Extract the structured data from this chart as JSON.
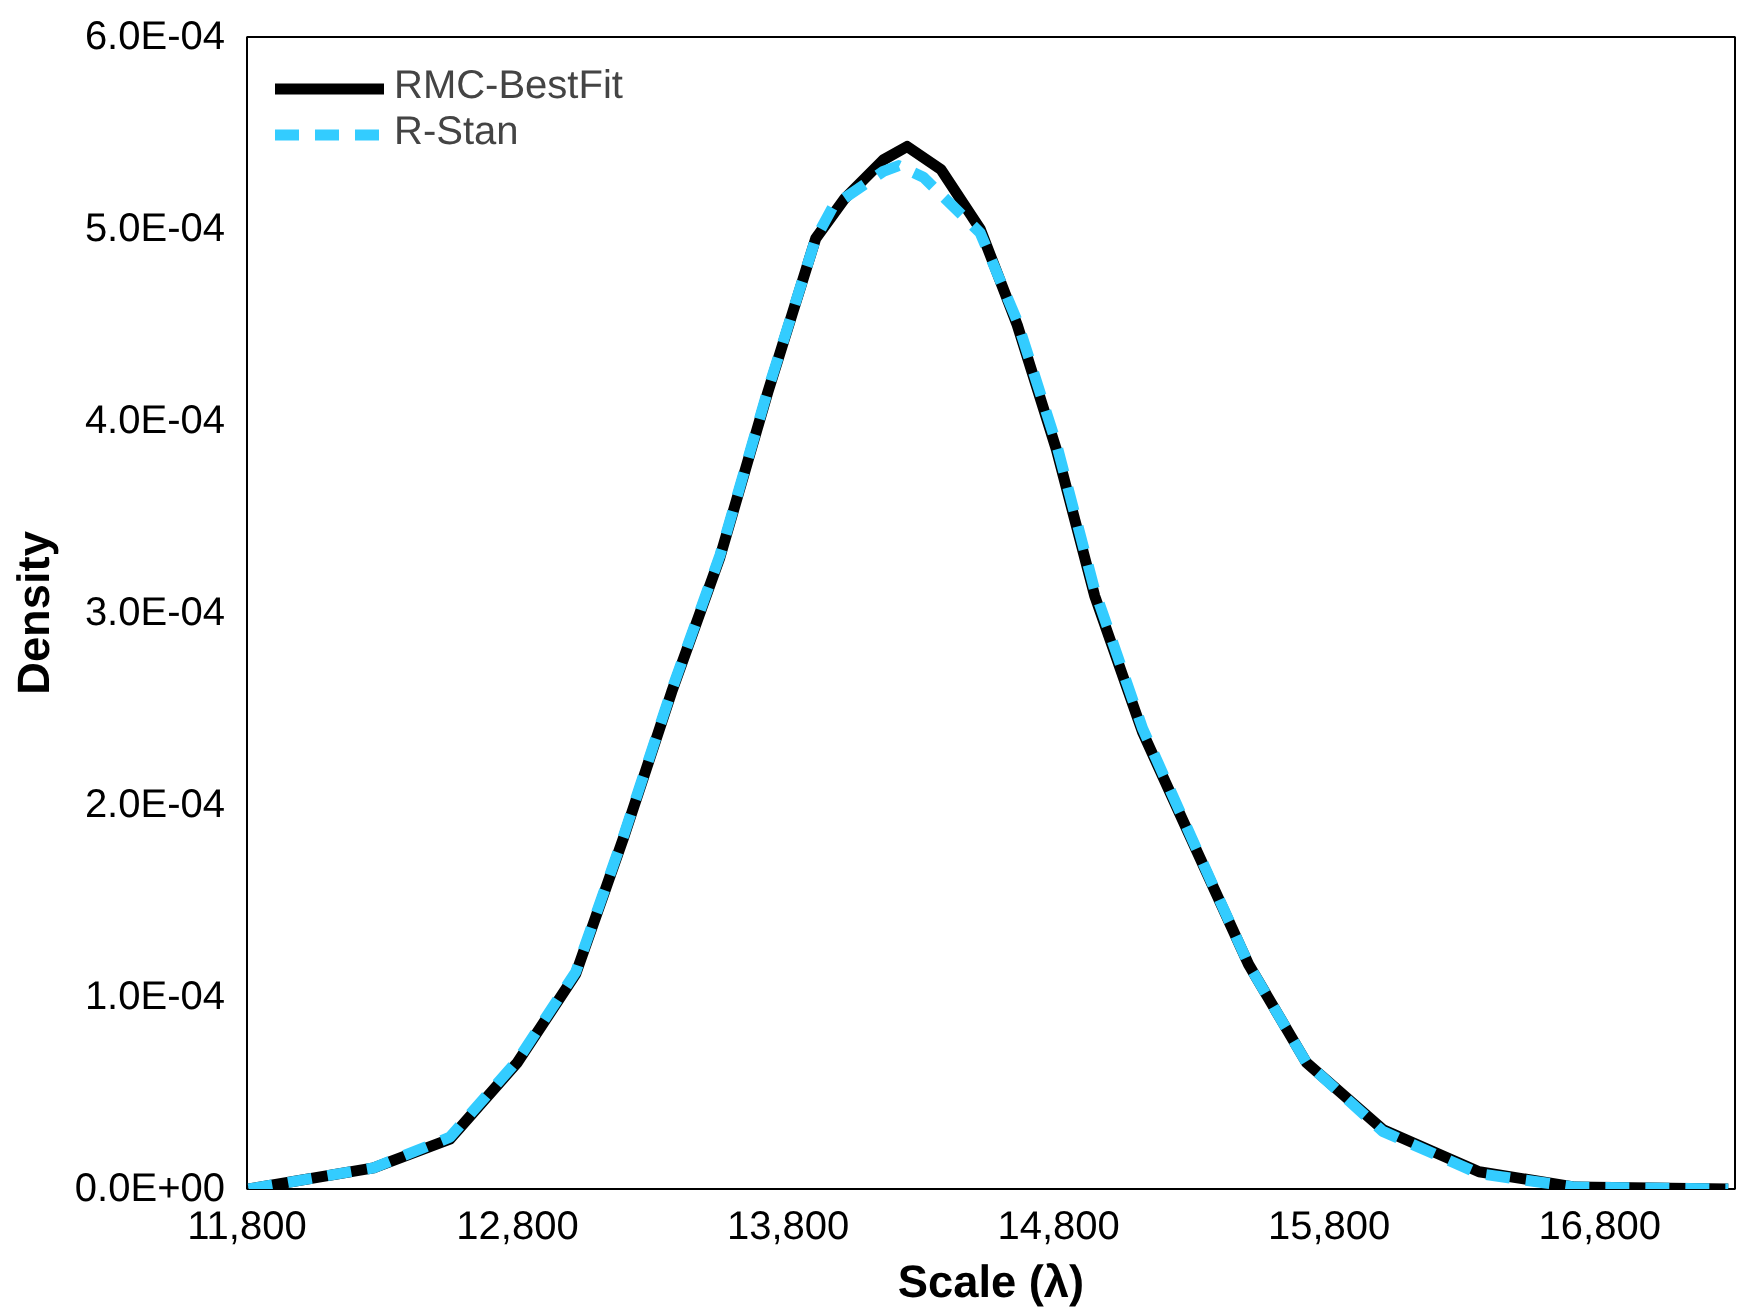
{
  "chart_data": {
    "type": "line",
    "xlabel": "Scale (λ)",
    "ylabel": "Density",
    "xlim": [
      11800,
      17300
    ],
    "ylim": [
      0,
      0.0006
    ],
    "xticks": [
      {
        "value": 11800,
        "label": "11,800"
      },
      {
        "value": 12800,
        "label": "12,800"
      },
      {
        "value": 13800,
        "label": "13,800"
      },
      {
        "value": 14800,
        "label": "14,800"
      },
      {
        "value": 15800,
        "label": "15,800"
      },
      {
        "value": 16800,
        "label": "16,800"
      }
    ],
    "yticks": [
      {
        "value": 0,
        "label": "0.0E+00"
      },
      {
        "value": 0.0001,
        "label": "1.0E-04"
      },
      {
        "value": 0.0002,
        "label": "2.0E-04"
      },
      {
        "value": 0.0003,
        "label": "3.0E-04"
      },
      {
        "value": 0.0004,
        "label": "4.0E-04"
      },
      {
        "value": 0.0005,
        "label": "5.0E-04"
      },
      {
        "value": 0.0006,
        "label": "6.0E-04"
      }
    ],
    "grid": false,
    "legend": "top left",
    "marker": "none",
    "series": [
      {
        "name": "RMC-BestFit",
        "color": "#000000",
        "line_style": "solid",
        "x": [
          11806,
          12268,
          12550,
          12800,
          13015,
          13192,
          13370,
          13548,
          13725,
          13902,
          14010,
          14152,
          14240,
          14365,
          14510,
          14647,
          14792,
          14933,
          15110,
          15288,
          15502,
          15715,
          15998,
          16354,
          16709,
          17275
        ],
        "values": [
          0,
          1.1e-05,
          2.6e-05,
          6.6e-05,
          0.000112,
          0.000183,
          0.000259,
          0.000329,
          0.000415,
          0.000495,
          0.000516,
          0.000536,
          0.000543,
          0.000531,
          0.0005,
          0.00045,
          0.000385,
          0.000309,
          0.000238,
          0.000183,
          0.000117,
          6.6e-05,
          3.1e-05,
          9e-06,
          1e-06,
          0
        ]
      },
      {
        "name": "R-Stan",
        "color": "#33ccff",
        "line_style": "dashed",
        "x": [
          11806,
          12268,
          12550,
          12800,
          13015,
          13192,
          13370,
          13548,
          13725,
          13902,
          13967,
          14152,
          14209,
          14300,
          14365,
          14510,
          14647,
          14792,
          14933,
          15110,
          15288,
          15502,
          15715,
          15998,
          16354,
          16709,
          17275
        ],
        "values": [
          0,
          1.1e-05,
          2.7e-05,
          6.7e-05,
          0.000113,
          0.000184,
          0.00026,
          0.00033,
          0.000416,
          0.000495,
          0.000512,
          0.00053,
          0.000533,
          0.000527,
          0.000518,
          0.000498,
          0.000452,
          0.000388,
          0.000312,
          0.00024,
          0.000184,
          0.000117,
          6.6e-05,
          3e-05,
          8e-06,
          1e-06,
          0
        ]
      }
    ]
  }
}
